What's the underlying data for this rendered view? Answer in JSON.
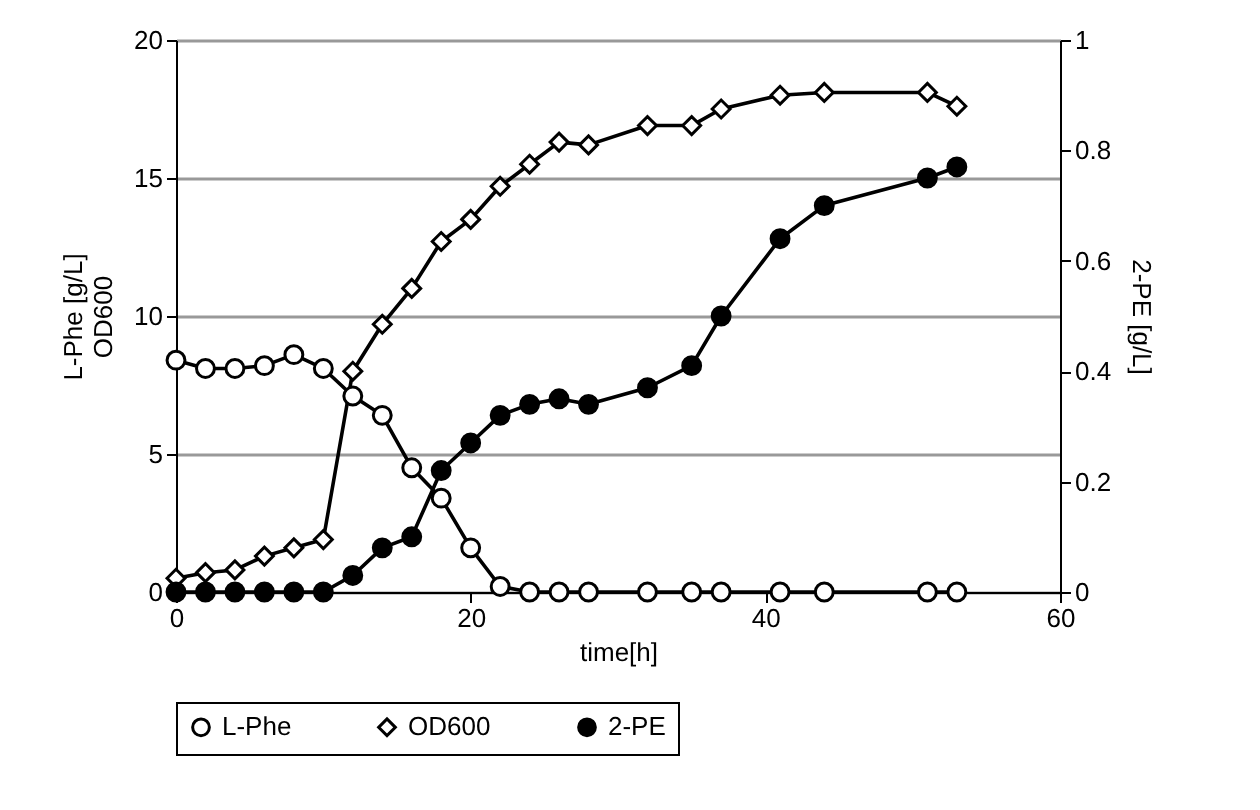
{
  "chart_data": {
    "type": "line",
    "xlabel": "time[h]",
    "ylabel": "L-Phe [g/L]\nOD600",
    "y2label": "2-PE  [g/L]",
    "x": [
      0,
      2,
      4,
      6,
      8,
      10,
      12,
      14,
      16,
      18,
      20,
      22,
      24,
      26,
      28,
      32,
      35,
      37,
      41,
      44,
      51,
      53
    ],
    "series": [
      {
        "name": "L-Phe",
        "color": "#000000",
        "marker": "circle",
        "values": [
          8.4,
          8.1,
          8.1,
          8.2,
          8.6,
          8.1,
          7.1,
          6.4,
          4.5,
          3.4,
          1.6,
          0.2,
          0,
          0,
          0,
          0,
          0,
          0,
          0,
          0,
          0,
          0
        ]
      },
      {
        "name": "OD600",
        "color": "#000000",
        "marker": "diamond",
        "values": [
          0.5,
          0.7,
          0.8,
          1.3,
          1.6,
          1.9,
          8.0,
          9.7,
          11.0,
          12.7,
          13.5,
          14.7,
          15.5,
          16.3,
          16.2,
          16.9,
          16.9,
          17.5,
          18.0,
          18.1,
          18.1,
          17.6
        ]
      },
      {
        "name": "2-PE",
        "color": "#000000",
        "marker": "circle",
        "axis": "y2",
        "values": [
          0,
          0,
          0,
          0,
          0,
          0,
          0.03,
          0.08,
          0.1,
          0.22,
          0.27,
          0.32,
          0.34,
          0.35,
          0.34,
          0.37,
          0.41,
          0.5,
          0.64,
          0.7,
          0.75,
          0.77
        ]
      }
    ],
    "xlim": [
      0,
      60
    ],
    "xticks": [
      0,
      20,
      40,
      60
    ],
    "ylim": [
      0,
      20
    ],
    "yticks": [
      0,
      5,
      10,
      15,
      20
    ],
    "y2lim": [
      0,
      1
    ],
    "y2ticks": [
      0,
      0.2,
      0.4,
      0.6,
      0.8,
      1
    ],
    "grid": "y",
    "legend": "bottom",
    "line_style": "solid"
  }
}
